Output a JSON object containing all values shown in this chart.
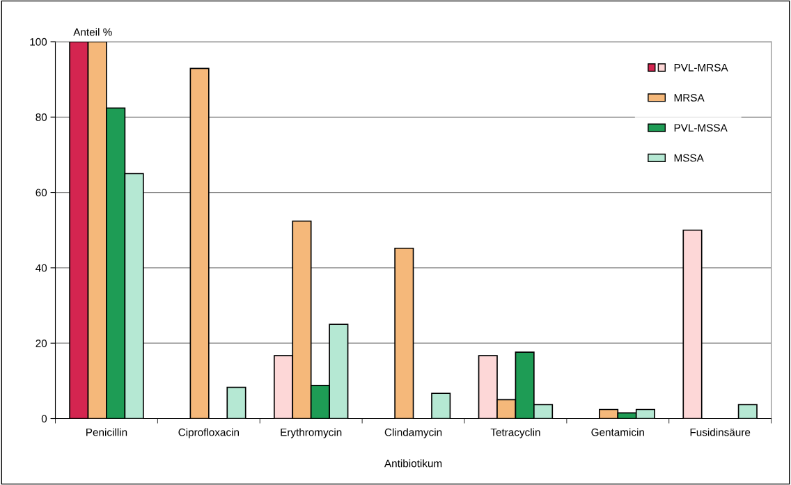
{
  "chart_data": {
    "type": "bar",
    "ylabel": "Anteil %",
    "xlabel": "Antibiotikum",
    "categories": [
      "Penicillin",
      "Ciprofloxacin",
      "Erythromycin",
      "Clindamycin",
      "Tetracyclin",
      "Gentamicin",
      "Fusidinsäure"
    ],
    "series": [
      {
        "name": "PVL-MRSA",
        "colors": [
          "#d42550",
          "#fdd7d7",
          "#fdd7d7",
          "#fdd7d7",
          "#fdd7d7",
          "#fdd7d7",
          "#fdd7d7"
        ],
        "values": [
          100,
          null,
          16.7,
          null,
          16.7,
          null,
          50
        ]
      },
      {
        "name": "MRSA",
        "color": "#f5b87a",
        "values": [
          100,
          92.9,
          52.4,
          45.2,
          5,
          2.4,
          null
        ]
      },
      {
        "name": "PVL-MSSA",
        "color": "#1e9c55",
        "values": [
          82.4,
          null,
          8.8,
          null,
          17.6,
          1.5,
          null
        ]
      },
      {
        "name": "MSSA",
        "color": "#b5e8d3",
        "values": [
          65,
          8.3,
          25,
          6.7,
          3.7,
          2.4,
          3.7
        ]
      }
    ],
    "ylim": [
      0,
      100
    ],
    "yticks": [
      0,
      20,
      40,
      60,
      80,
      100
    ],
    "grid": "y",
    "legend": "top right"
  }
}
